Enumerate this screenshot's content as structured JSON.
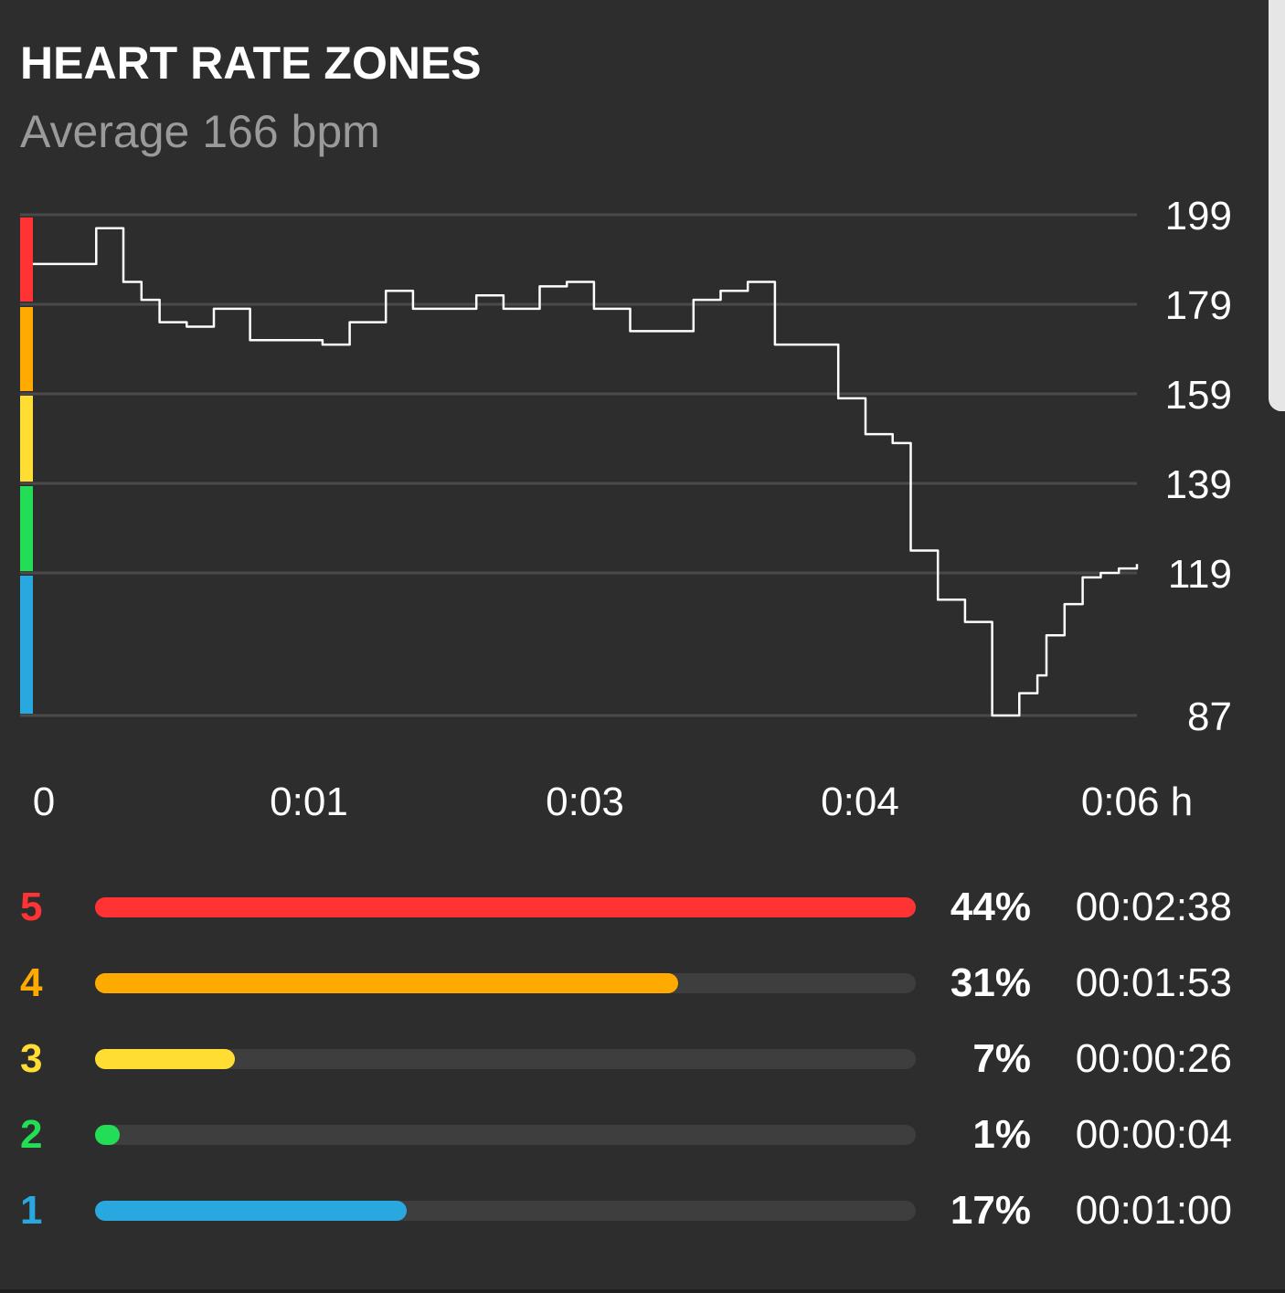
{
  "header": {
    "title": "HEART RATE ZONES",
    "subtitle": "Average 166 bpm"
  },
  "chart_data": {
    "type": "line",
    "title": "",
    "xlabel": "",
    "ylabel": "",
    "y_ticks": [
      "199",
      "179",
      "159",
      "139",
      "119",
      "87"
    ],
    "x_ticks": [
      "0",
      "0:01",
      "0:03",
      "0:04",
      "0:06 h"
    ],
    "ylim": [
      87,
      199
    ],
    "xlim": [
      0,
      6.1
    ],
    "grid": true,
    "line_color": "#ffffff",
    "zone_band_colors": [
      "#ff3333",
      "#ffaa00",
      "#ffdd33",
      "#22dd55",
      "#29a8e0"
    ],
    "series": [
      {
        "x": [
          0,
          0.15,
          0.35,
          0.5,
          0.6,
          0.7,
          0.85,
          1.0,
          1.2,
          1.4,
          1.6,
          1.75,
          1.95,
          2.1,
          2.3,
          2.45,
          2.6,
          2.8,
          2.95,
          3.1,
          3.3,
          3.5,
          3.65,
          3.8,
          3.95,
          4.1,
          4.3,
          4.45,
          4.6,
          4.75,
          4.85,
          5.0,
          5.15,
          5.3,
          5.45,
          5.55,
          5.6,
          5.7,
          5.8,
          5.9,
          6.0,
          6.1
        ],
        "y": [
          188,
          188,
          196,
          184,
          180,
          175,
          174,
          178,
          171,
          171,
          170,
          175,
          182,
          178,
          178,
          181,
          178,
          183,
          184,
          178,
          173,
          173,
          180,
          182,
          184,
          170,
          170,
          158,
          150,
          148,
          124,
          113,
          108,
          87,
          92,
          96,
          105,
          112,
          118,
          119,
          120,
          121
        ]
      }
    ]
  },
  "zones": [
    {
      "label": "5",
      "color": "#ff3333",
      "fraction": 1.0,
      "percent": "44%",
      "time": "00:02:38"
    },
    {
      "label": "4",
      "color": "#ffaa00",
      "fraction": 0.71,
      "percent": "31%",
      "time": "00:01:53"
    },
    {
      "label": "3",
      "color": "#ffdd33",
      "fraction": 0.17,
      "percent": "7%",
      "time": "00:00:26"
    },
    {
      "label": "2",
      "color": "#22dd55",
      "fraction": 0.03,
      "percent": "1%",
      "time": "00:00:04"
    },
    {
      "label": "1",
      "color": "#29a8e0",
      "fraction": 0.38,
      "percent": "17%",
      "time": "00:01:00"
    }
  ]
}
